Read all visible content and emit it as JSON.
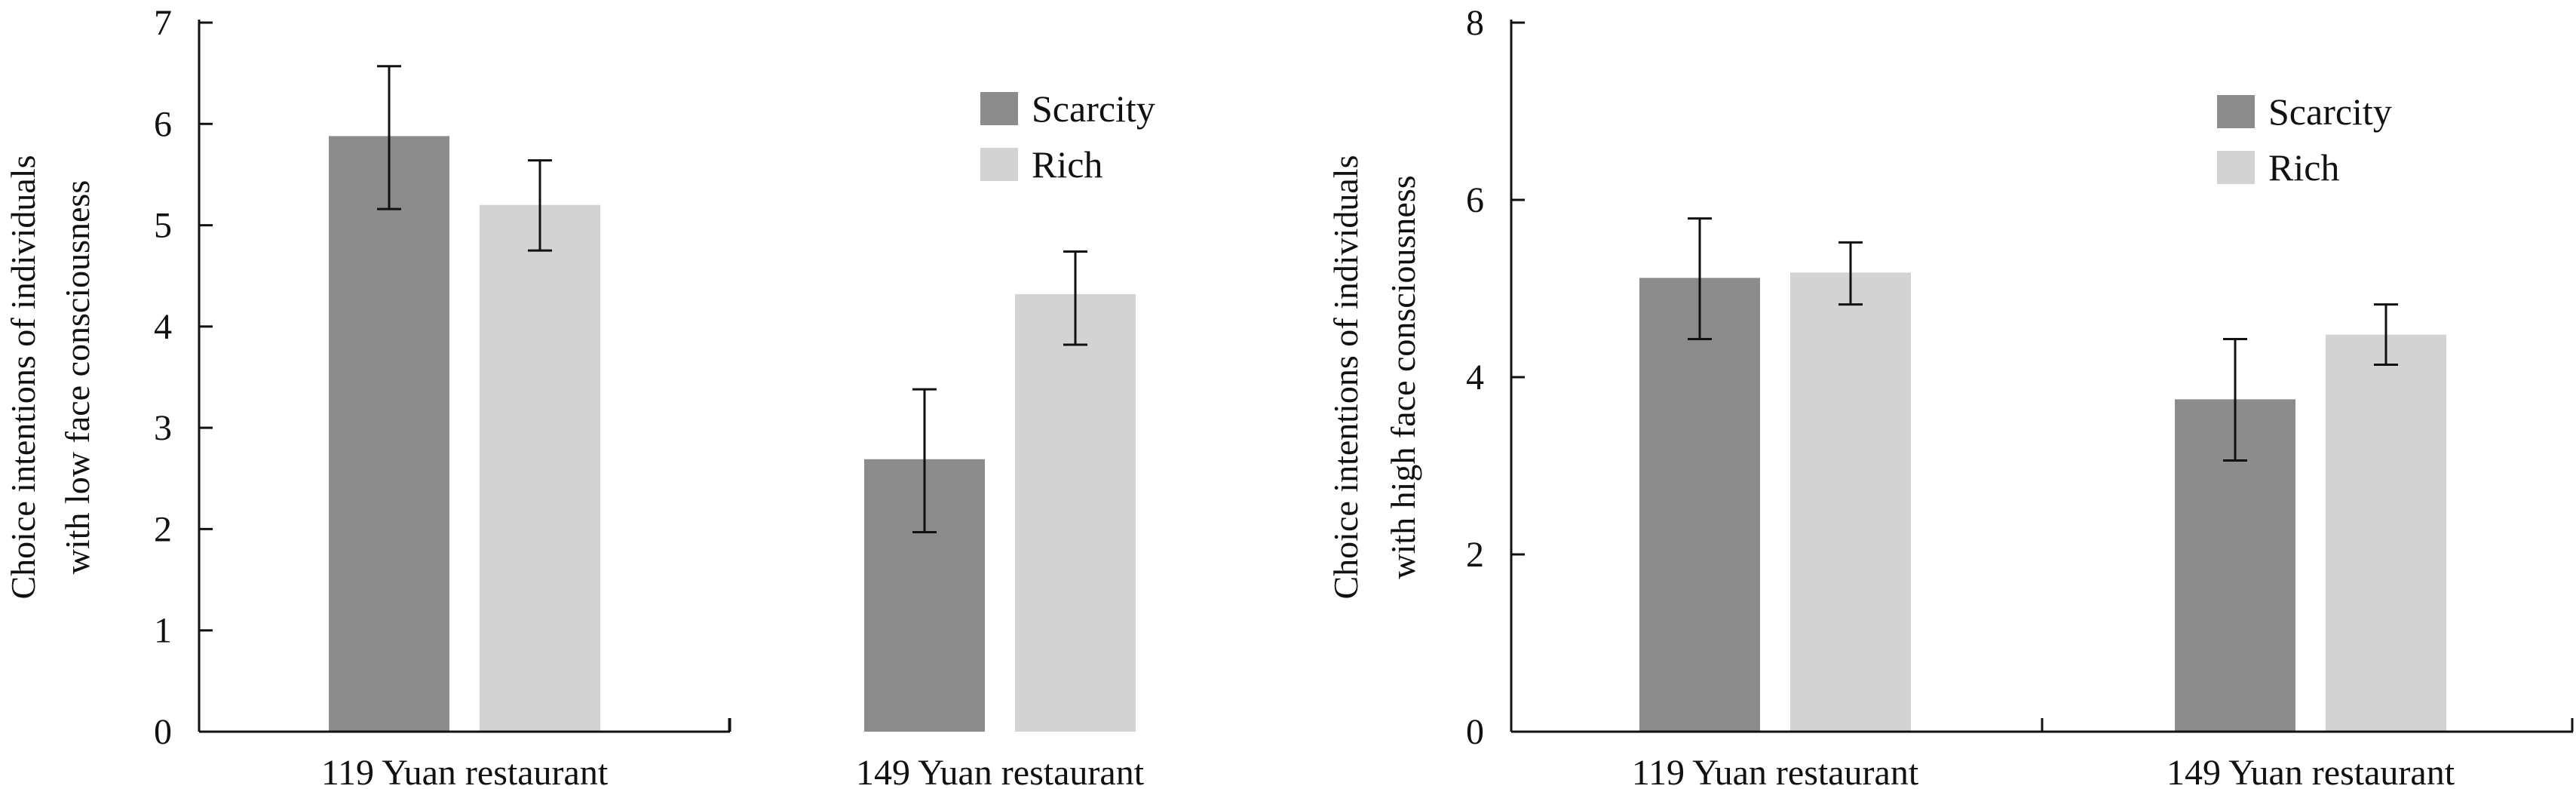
{
  "chart_data": [
    {
      "type": "bar",
      "title": "",
      "categories": [
        "119 Yuan restaurant",
        "149 Yuan restaurant"
      ],
      "series": [
        {
          "name": "Scarcity",
          "values": [
            5.88,
            2.69
          ],
          "error_low": [
            5.16,
            1.97
          ],
          "error_high": [
            6.57,
            3.38
          ]
        },
        {
          "name": "Rich",
          "values": [
            5.2,
            4.32
          ],
          "error_low": [
            4.75,
            3.82
          ],
          "error_high": [
            5.64,
            4.74
          ]
        }
      ],
      "xlabel": "",
      "ylabel": [
        "Choice intentions of individuals",
        "with low face consciousness"
      ],
      "ylim": [
        0,
        7
      ],
      "yticks": [
        "0",
        "1",
        "2",
        "3",
        "4",
        "5",
        "6",
        "7"
      ],
      "grid": false,
      "legend_position": "top-right"
    },
    {
      "type": "bar",
      "title": "",
      "categories": [
        "119 Yuan restaurant",
        "149 Yuan restaurant"
      ],
      "series": [
        {
          "name": "Scarcity",
          "values": [
            5.12,
            3.75
          ],
          "error_low": [
            4.43,
            3.06
          ],
          "error_high": [
            5.79,
            4.43
          ]
        },
        {
          "name": "Rich",
          "values": [
            5.18,
            4.48
          ],
          "error_low": [
            4.82,
            4.14
          ],
          "error_high": [
            5.52,
            4.82
          ]
        }
      ],
      "xlabel": "",
      "ylabel": [
        "Choice intentions of individuals",
        "with high face consciousness"
      ],
      "ylim": [
        0,
        8
      ],
      "yticks": [
        "0",
        "2",
        "4",
        "6",
        "8"
      ],
      "grid": false,
      "legend_position": "top-right"
    }
  ],
  "colors": {
    "scarcity": "#8c8c8c",
    "rich": "#d3d3d3",
    "axis": "#111111"
  }
}
